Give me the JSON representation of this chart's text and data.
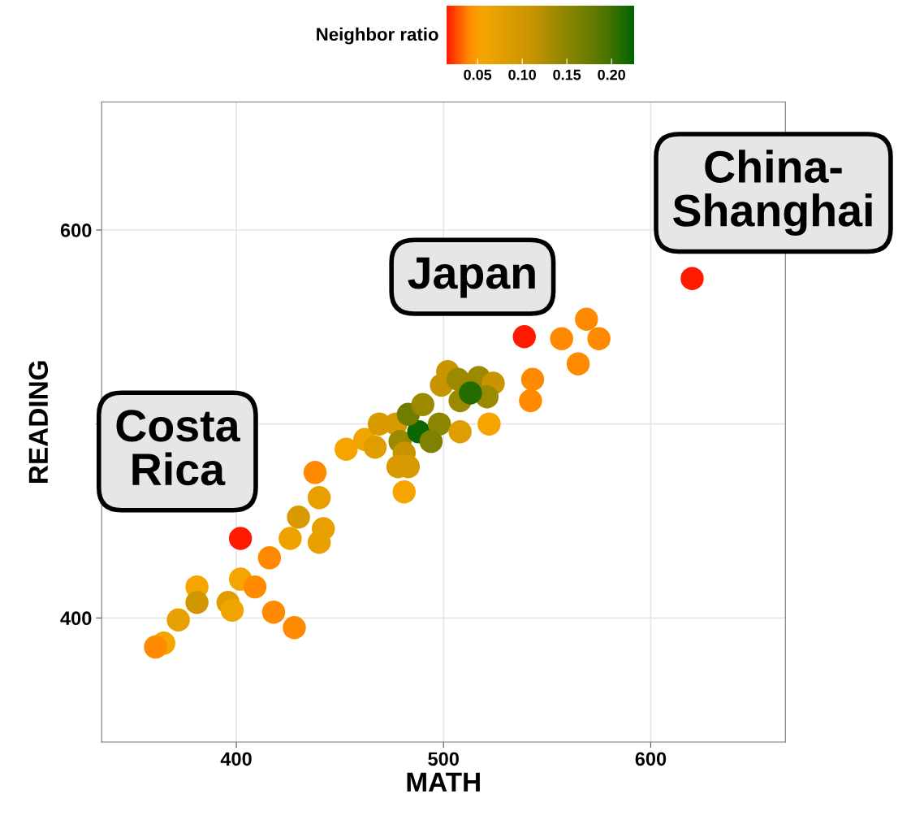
{
  "chart_data": {
    "type": "scatter",
    "xlabel": "MATH",
    "ylabel": "READING",
    "clabel": "Neighbor ratio",
    "xlim": [
      335,
      665
    ],
    "ylim": [
      336,
      666
    ],
    "xticks": [
      400,
      500,
      600
    ],
    "yticks": [
      400,
      {
        "value": 500,
        "label": null
      },
      600
    ],
    "clim": [
      0.015,
      0.225
    ],
    "cticks": [
      {
        "value": 0.05,
        "label": "0.05"
      },
      {
        "value": 0.1,
        "label": "0.10"
      },
      {
        "value": 0.15,
        "label": "0.15"
      },
      {
        "value": 0.2,
        "label": "0.20"
      }
    ],
    "grid": true,
    "marker": "circle",
    "x": [
      402,
      539,
      620,
      569,
      557,
      575,
      565,
      543,
      542,
      453,
      462,
      467,
      469,
      477,
      479,
      488,
      483,
      490,
      498,
      494,
      481,
      483,
      478,
      481,
      508,
      522,
      502,
      499,
      507,
      517,
      524,
      508,
      521,
      513,
      438,
      440,
      430,
      442,
      440,
      426,
      416,
      402,
      409,
      418,
      428,
      381,
      381,
      396,
      398,
      372,
      365,
      361
    ],
    "values": [
      441,
      545,
      575,
      554,
      544,
      544,
      531,
      523,
      512,
      487,
      492,
      488,
      500,
      500,
      491,
      496,
      505,
      510,
      500,
      491,
      485,
      478,
      478,
      465,
      496,
      500,
      527,
      520,
      523,
      524,
      521,
      512,
      514,
      516,
      475,
      462,
      452,
      446,
      439,
      441,
      431,
      420,
      416,
      403,
      395,
      416,
      408,
      408,
      404,
      399,
      387,
      385
    ],
    "cvalues": [
      0.015,
      0.015,
      0.015,
      0.04,
      0.04,
      0.04,
      0.04,
      0.04,
      0.04,
      0.055,
      0.06,
      0.08,
      0.09,
      0.09,
      0.14,
      0.22,
      0.17,
      0.14,
      0.15,
      0.16,
      0.11,
      0.09,
      0.09,
      0.055,
      0.08,
      0.055,
      0.11,
      0.11,
      0.14,
      0.14,
      0.11,
      0.14,
      0.14,
      0.21,
      0.04,
      0.07,
      0.09,
      0.07,
      0.07,
      0.065,
      0.04,
      0.055,
      0.04,
      0.04,
      0.04,
      0.055,
      0.1,
      0.08,
      0.06,
      0.07,
      0.055,
      0.04
    ],
    "annotations": [
      {
        "text": "Costa\nRica",
        "x": 402,
        "y": 441
      },
      {
        "text": "Japan",
        "x": 539,
        "y": 545
      },
      {
        "text": "China-\nShanghai",
        "x": 620,
        "y": 575
      }
    ]
  }
}
